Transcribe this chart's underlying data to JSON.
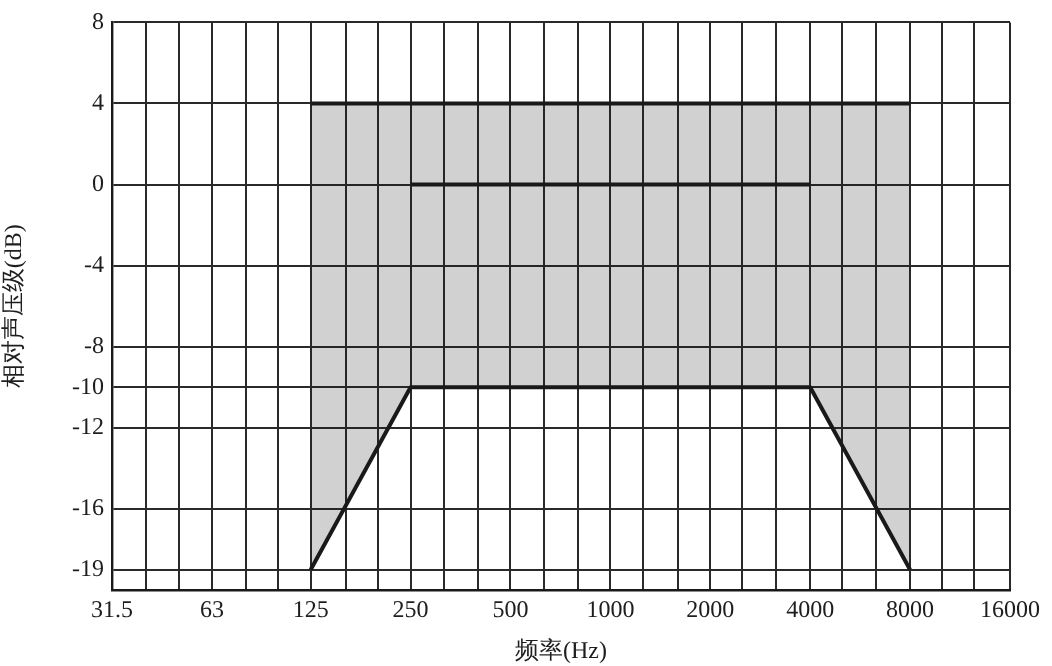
{
  "chart_data": {
    "type": "line",
    "xlabel": "频率(Hz)",
    "ylabel": "相对声压级(dB)",
    "series": [
      {
        "color": "#1a1a1a",
        "x": [
          125,
          8000
        ],
        "values": [
          4,
          4
        ]
      },
      {
        "color": "#1a1a1a",
        "x": [
          125,
          250,
          4000,
          8000
        ],
        "values": [
          null,
          0,
          0,
          null
        ],
        "lower": [
          -19,
          -10,
          -10,
          -19
        ],
        "upper": [
          4,
          4,
          4,
          4
        ]
      },
      {
        "color": "#1a1a1a",
        "x": [
          125,
          250,
          4000,
          8000
        ],
        "values": [
          -19,
          -10,
          -10,
          -19
        ]
      }
    ],
    "log": "x",
    "xlim": [
      31.5,
      16000
    ],
    "xticks": [
      31.5,
      {
        "value": 40,
        "label": null
      },
      {
        "value": 50,
        "label": null
      },
      63,
      {
        "value": 80,
        "label": null
      },
      {
        "value": 100,
        "label": null
      },
      125,
      {
        "value": 160,
        "label": null
      },
      {
        "value": 200,
        "label": null
      },
      250,
      {
        "value": 315,
        "label": null
      },
      {
        "value": 400,
        "label": null
      },
      500,
      {
        "value": 630,
        "label": null
      },
      {
        "value": 800,
        "label": null
      },
      1000,
      {
        "value": 1250,
        "label": null
      },
      {
        "value": 1600,
        "label": null
      },
      2000,
      {
        "value": 2500,
        "label": null
      },
      {
        "value": 3150,
        "label": null
      },
      4000,
      {
        "value": 5000,
        "label": null
      },
      {
        "value": 6300,
        "label": null
      },
      8000,
      {
        "value": 10000,
        "label": null
      },
      {
        "value": 12500,
        "label": null
      },
      16000
    ],
    "ylim": [
      -20,
      8
    ],
    "yticks": [
      8,
      4,
      0,
      -4,
      -8,
      -10,
      -12,
      -16,
      -19
    ],
    "grid": true,
    "legend": false,
    "marker": "none",
    "line_style": "solid"
  }
}
